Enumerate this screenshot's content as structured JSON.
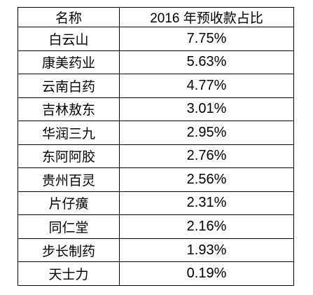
{
  "table": {
    "headers": [
      "名称",
      "2016 年预收款占比"
    ],
    "rows": [
      {
        "name": "白云山",
        "value": "7.75%"
      },
      {
        "name": "康美药业",
        "value": "5.63%"
      },
      {
        "name": "云南白药",
        "value": "4.77%"
      },
      {
        "name": "吉林敖东",
        "value": "3.01%"
      },
      {
        "name": "华润三九",
        "value": "2.95%"
      },
      {
        "name": "东阿阿胶",
        "value": "2.76%"
      },
      {
        "name": "贵州百灵",
        "value": "2.56%"
      },
      {
        "name": "片仔癀",
        "value": "2.31%"
      },
      {
        "name": "同仁堂",
        "value": "2.16%"
      },
      {
        "name": "步长制药",
        "value": "1.93%"
      },
      {
        "name": "天士力",
        "value": "0.19%"
      }
    ]
  }
}
